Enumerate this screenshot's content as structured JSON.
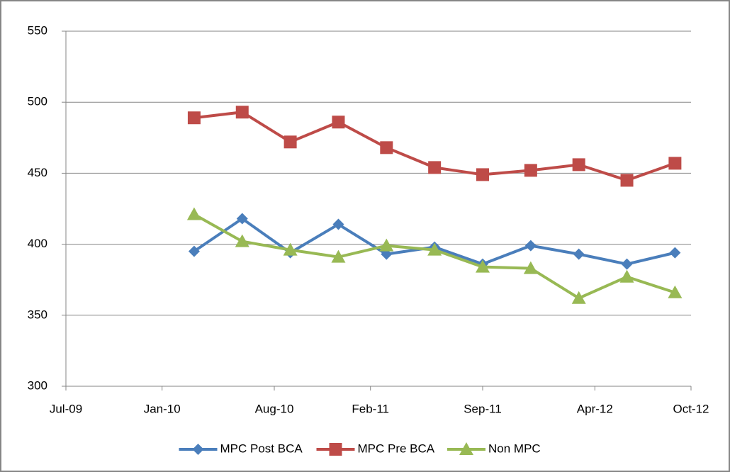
{
  "chart_data": {
    "type": "line",
    "x": [
      "2010-03",
      "2010-06",
      "2010-09",
      "2010-12",
      "2011-03",
      "2011-06",
      "2011-09",
      "2011-12",
      "2012-03",
      "2012-06",
      "2012-09"
    ],
    "series": [
      {
        "name": "MPC Post BCA",
        "color": "#4a7ebb",
        "marker": "diamond",
        "values": [
          395,
          418,
          394,
          414,
          393,
          398,
          386,
          399,
          393,
          386,
          394
        ]
      },
      {
        "name": "MPC Pre BCA",
        "color": "#be4b48",
        "marker": "square",
        "values": [
          489,
          493,
          472,
          486,
          468,
          454,
          449,
          452,
          456,
          445,
          457
        ]
      },
      {
        "name": "Non MPC",
        "color": "#98b954",
        "marker": "triangle",
        "values": [
          421,
          402,
          396,
          391,
          399,
          396,
          384,
          383,
          362,
          377,
          366
        ]
      }
    ],
    "xlim": [
      "2009-07",
      "2012-10"
    ],
    "xticks": [
      {
        "value": "2009-07",
        "label": "Jul-09"
      },
      {
        "value": "2010-01",
        "label": "Jan-10"
      },
      {
        "value": "2010-08",
        "label": "Aug-10"
      },
      {
        "value": "2011-02",
        "label": "Feb-11"
      },
      {
        "value": "2011-09",
        "label": "Sep-11"
      },
      {
        "value": "2012-04",
        "label": "Apr-12"
      },
      {
        "value": "2012-10",
        "label": "Oct-12"
      }
    ],
    "ylim": [
      300,
      550
    ],
    "yticks": [
      300,
      350,
      400,
      450,
      500,
      550
    ],
    "grid": true,
    "legend": "bottom"
  }
}
